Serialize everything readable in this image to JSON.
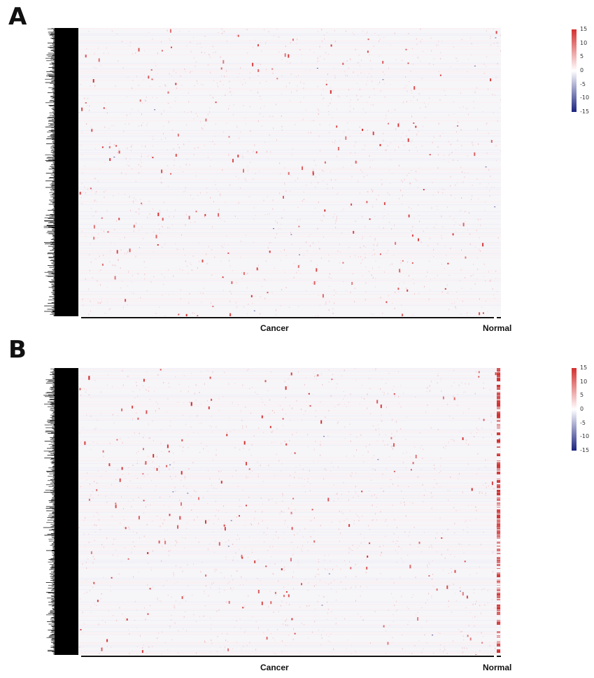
{
  "panels": [
    {
      "label": "A",
      "groups": [
        "Cancer",
        "Normal"
      ]
    },
    {
      "label": "B",
      "groups": [
        "Cancer",
        "Normal"
      ]
    }
  ],
  "colors": {
    "high": "#d32f2f",
    "mid": "#ffffff",
    "low": "#1a237e",
    "background": "#f6f5f8",
    "dendrogram": "#000000"
  },
  "chart_data": [
    {
      "type": "heatmap",
      "title": "",
      "groups": [
        "Cancer",
        "Normal"
      ],
      "color_scale": {
        "min": -15,
        "max": 15,
        "ticks": [
          15,
          10,
          5,
          0,
          -5,
          -10,
          -15
        ]
      },
      "row_dendrogram": true,
      "values_note_visible": false
    },
    {
      "type": "heatmap",
      "title": "",
      "groups": [
        "Cancer",
        "Normal"
      ],
      "color_scale": {
        "min": -15,
        "max": 15,
        "ticks": [
          15,
          10,
          5,
          0,
          -5,
          -10,
          -15
        ]
      },
      "row_dendrogram": true
    }
  ]
}
